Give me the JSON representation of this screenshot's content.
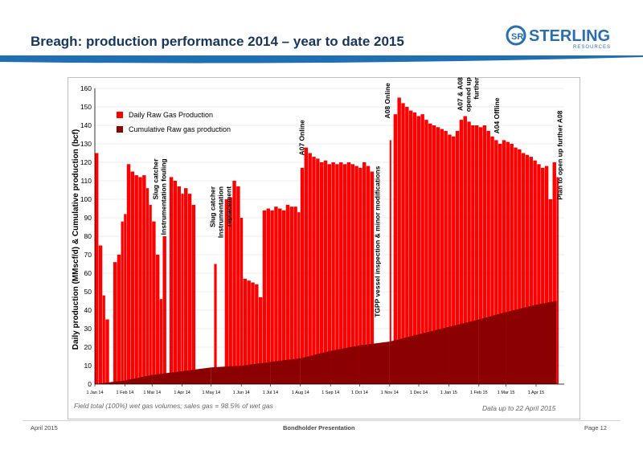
{
  "slide": {
    "title": "Breagh: production performance 2014 – year to date 2015",
    "logo_text": "STERLING",
    "logo_subtext": "RESOURCES",
    "logo_monogram": "SR",
    "footer_left": "April 2015",
    "footer_center": "Bondholder Presentation",
    "footer_right": "Page 12",
    "note_left": "Field total (100%) wet gas volumes; sales gas = 98.5% of wet gas",
    "note_right": "Data up to 22 April 2015"
  },
  "colors": {
    "title": "#17365d",
    "rule_blue": "#1f6fb5",
    "daily": "#ff0000",
    "cumulative": "#8b0000",
    "logo": "#2b6fb3"
  },
  "chart_data": {
    "type": "bar",
    "ylabel": "Daily production (MMscf/d)  & Cumulative production (bcf)",
    "ylim": [
      0,
      160
    ],
    "yticks": [
      0,
      10,
      20,
      30,
      40,
      50,
      60,
      70,
      80,
      90,
      100,
      110,
      120,
      130,
      140,
      150,
      160
    ],
    "xlim": [
      "2014-01-01",
      "2015-04-30"
    ],
    "xticks": [
      "1 Jan 14",
      "1 Feb 14",
      "1 Mar 14",
      "1 Apr 14",
      "1 May 14",
      "1 Jun 14",
      "1 Jul 14",
      "1 Aug 14",
      "1 Sep 14",
      "1 Oct 14",
      "1 Nov 14",
      "1 Dec 14",
      "1 Jan 15",
      "1 Feb 15",
      "1 Mar 15",
      "1 Apr 15"
    ],
    "legend": {
      "position": "top-left",
      "entries": [
        "Daily Raw Gas Production",
        "Cumulative Raw gas production"
      ]
    },
    "series": [
      {
        "name": "Daily Raw Gas Production",
        "color": "#ff0000",
        "points": [
          [
            "2014-01-01",
            125
          ],
          [
            "2014-01-05",
            75
          ],
          [
            "2014-01-09",
            48
          ],
          [
            "2014-01-12",
            35
          ],
          [
            "2014-01-16",
            0
          ],
          [
            "2014-01-20",
            66
          ],
          [
            "2014-01-24",
            70
          ],
          [
            "2014-01-28",
            88
          ],
          [
            "2014-01-31",
            92
          ],
          [
            "2014-02-03",
            119
          ],
          [
            "2014-02-07",
            115
          ],
          [
            "2014-02-11",
            113
          ],
          [
            "2014-02-15",
            112
          ],
          [
            "2014-02-19",
            113
          ],
          [
            "2014-02-23",
            106
          ],
          [
            "2014-02-26",
            97
          ],
          [
            "2014-03-01",
            88
          ],
          [
            "2014-03-05",
            70
          ],
          [
            "2014-03-09",
            46
          ],
          [
            "2014-03-12",
            80
          ],
          [
            "2014-03-16",
            0
          ],
          [
            "2014-03-19",
            112
          ],
          [
            "2014-03-23",
            110
          ],
          [
            "2014-03-27",
            107
          ],
          [
            "2014-03-31",
            103
          ],
          [
            "2014-04-03",
            106
          ],
          [
            "2014-04-07",
            103
          ],
          [
            "2014-04-11",
            97
          ],
          [
            "2014-04-15",
            0
          ],
          [
            "2014-04-20",
            0
          ],
          [
            "2014-04-25",
            0
          ],
          [
            "2014-04-30",
            0
          ],
          [
            "2014-05-04",
            65
          ],
          [
            "2014-05-07",
            0
          ],
          [
            "2014-05-11",
            0
          ],
          [
            "2014-05-15",
            100
          ],
          [
            "2014-05-19",
            101
          ],
          [
            "2014-05-23",
            110
          ],
          [
            "2014-05-27",
            107
          ],
          [
            "2014-05-31",
            90
          ],
          [
            "2014-06-03",
            57
          ],
          [
            "2014-06-07",
            56
          ],
          [
            "2014-06-11",
            55
          ],
          [
            "2014-06-15",
            54
          ],
          [
            "2014-06-19",
            47
          ],
          [
            "2014-06-23",
            94
          ],
          [
            "2014-06-27",
            95
          ],
          [
            "2014-07-01",
            94
          ],
          [
            "2014-07-05",
            96
          ],
          [
            "2014-07-09",
            95
          ],
          [
            "2014-07-13",
            94
          ],
          [
            "2014-07-17",
            97
          ],
          [
            "2014-07-21",
            96
          ],
          [
            "2014-07-25",
            96
          ],
          [
            "2014-07-29",
            93
          ],
          [
            "2014-08-01",
            117
          ],
          [
            "2014-08-05",
            128
          ],
          [
            "2014-08-09",
            125
          ],
          [
            "2014-08-13",
            123
          ],
          [
            "2014-08-17",
            122
          ],
          [
            "2014-08-21",
            120
          ],
          [
            "2014-08-25",
            121
          ],
          [
            "2014-08-29",
            119
          ],
          [
            "2014-09-02",
            120
          ],
          [
            "2014-09-06",
            119
          ],
          [
            "2014-09-10",
            120
          ],
          [
            "2014-09-14",
            119
          ],
          [
            "2014-09-18",
            120
          ],
          [
            "2014-09-22",
            119
          ],
          [
            "2014-09-26",
            118
          ],
          [
            "2014-09-30",
            117
          ],
          [
            "2014-10-04",
            120
          ],
          [
            "2014-10-08",
            118
          ],
          [
            "2014-10-12",
            115
          ],
          [
            "2014-10-16",
            0
          ],
          [
            "2014-10-20",
            0
          ],
          [
            "2014-10-24",
            0
          ],
          [
            "2014-10-28",
            0
          ],
          [
            "2014-11-01",
            132
          ],
          [
            "2014-11-03",
            0
          ],
          [
            "2014-11-05",
            146
          ],
          [
            "2014-11-09",
            155
          ],
          [
            "2014-11-13",
            152
          ],
          [
            "2014-11-17",
            150
          ],
          [
            "2014-11-21",
            148
          ],
          [
            "2014-11-25",
            147
          ],
          [
            "2014-11-29",
            145
          ],
          [
            "2014-12-03",
            146
          ],
          [
            "2014-12-07",
            143
          ],
          [
            "2014-12-11",
            141
          ],
          [
            "2014-12-15",
            140
          ],
          [
            "2014-12-19",
            139
          ],
          [
            "2014-12-23",
            138
          ],
          [
            "2014-12-27",
            137
          ],
          [
            "2014-12-31",
            135
          ],
          [
            "2015-01-04",
            134
          ],
          [
            "2015-01-08",
            137
          ],
          [
            "2015-01-12",
            143
          ],
          [
            "2015-01-16",
            145
          ],
          [
            "2015-01-20",
            142
          ],
          [
            "2015-01-24",
            140
          ],
          [
            "2015-01-28",
            140
          ],
          [
            "2015-02-01",
            139
          ],
          [
            "2015-02-05",
            140
          ],
          [
            "2015-02-09",
            137
          ],
          [
            "2015-02-13",
            134
          ],
          [
            "2015-02-17",
            132
          ],
          [
            "2015-02-21",
            130
          ],
          [
            "2015-02-25",
            132
          ],
          [
            "2015-03-01",
            131
          ],
          [
            "2015-03-05",
            130
          ],
          [
            "2015-03-09",
            128
          ],
          [
            "2015-03-13",
            127
          ],
          [
            "2015-03-17",
            125
          ],
          [
            "2015-03-21",
            124
          ],
          [
            "2015-03-25",
            123
          ],
          [
            "2015-03-29",
            121
          ],
          [
            "2015-04-02",
            119
          ],
          [
            "2015-04-06",
            117
          ],
          [
            "2015-04-10",
            118
          ],
          [
            "2015-04-14",
            100
          ],
          [
            "2015-04-18",
            120
          ],
          [
            "2015-04-22",
            112
          ]
        ]
      },
      {
        "name": "Cumulative Raw gas production",
        "color": "#8b0000",
        "points": [
          [
            "2014-01-01",
            0
          ],
          [
            "2014-02-01",
            2
          ],
          [
            "2014-03-01",
            5
          ],
          [
            "2014-04-01",
            7
          ],
          [
            "2014-05-01",
            9
          ],
          [
            "2014-06-01",
            10
          ],
          [
            "2014-07-01",
            12
          ],
          [
            "2014-08-01",
            14
          ],
          [
            "2014-09-01",
            18
          ],
          [
            "2014-10-01",
            21
          ],
          [
            "2014-11-01",
            23
          ],
          [
            "2014-12-01",
            27
          ],
          [
            "2015-01-01",
            31
          ],
          [
            "2015-02-01",
            35
          ],
          [
            "2015-03-01",
            39
          ],
          [
            "2015-04-01",
            43
          ],
          [
            "2015-04-22",
            45
          ]
        ]
      }
    ],
    "annotations": [
      {
        "date": "2014-03-07",
        "value": 122,
        "lines": [
          "Slug catcher",
          "Instrumentation fouling"
        ]
      },
      {
        "date": "2014-05-05",
        "value": 107,
        "lines": [
          "Slug catcher",
          "Instrumentation",
          "replacement"
        ]
      },
      {
        "date": "2014-08-05",
        "value": 143,
        "lines": [
          "A07 Online"
        ]
      },
      {
        "date": "2014-10-22",
        "value": 118,
        "lines": [
          "TGPP vessel inspection & minor modifications"
        ]
      },
      {
        "date": "2014-11-01",
        "value": 163,
        "lines": [
          "A08 Online"
        ]
      },
      {
        "date": "2015-01-15",
        "value": 166,
        "lines": [
          "A07 & A08",
          "opened up",
          "further"
        ]
      },
      {
        "date": "2015-02-22",
        "value": 155,
        "lines": [
          "A04 Offline"
        ]
      },
      {
        "date": "2015-04-28",
        "value": 148,
        "lines": [
          "Plan to open up further A08"
        ]
      }
    ]
  }
}
